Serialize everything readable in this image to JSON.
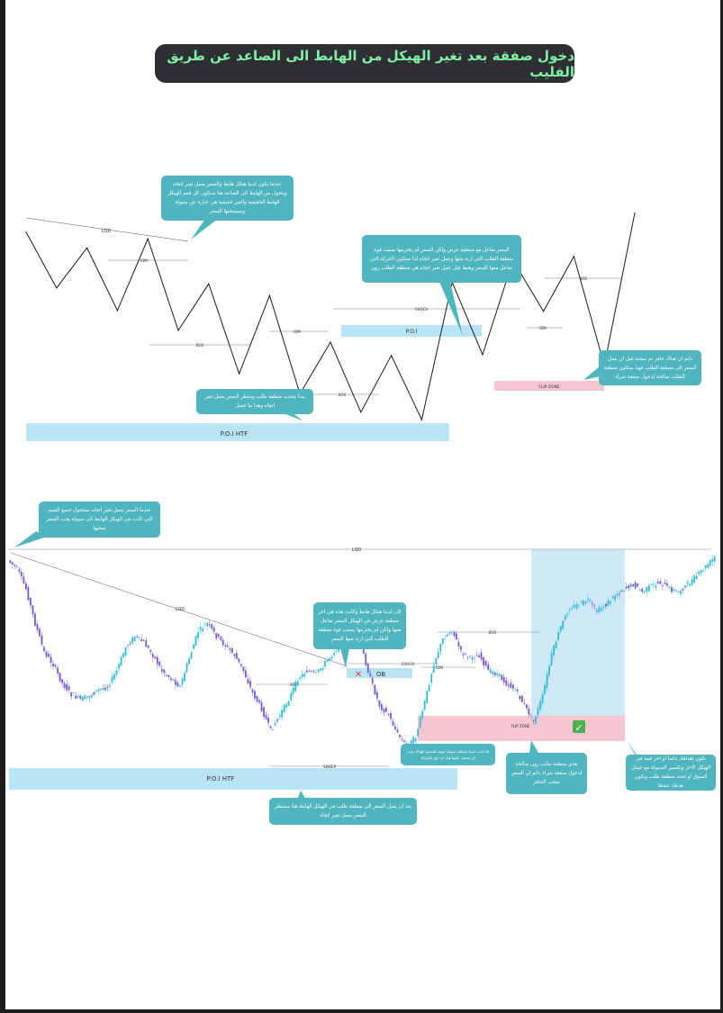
{
  "title": "دخول صفقة بعد تغير الهيكل من الهابط الى الصاعد عن طريق الفليب",
  "colors": {
    "title_bg": "#2d2f33",
    "title_text": "#7ff0a6",
    "callout_bg": "#4fb5bf",
    "poi_zone": "#b9e4f5",
    "flip_zone": "#f7c6d3",
    "bull_candle": "#2ec4d8",
    "bear_candle": "#7a5ad6",
    "target_zone": "#cfeaf6"
  },
  "top_diagram": {
    "labels": {
      "lqd": "LQD",
      "idm_1": "IDM",
      "bos_1": "BOS",
      "idm_2": "IDM",
      "bos_2": "BOS",
      "choch": "CHOCH",
      "poi": "P.O.I",
      "flip_zone": "FLIP ZONE",
      "idm_3": "IDM",
      "bos_3": "BOS",
      "poi_htf": "P.O.I  HTF"
    },
    "callouts": [
      {
        "id": "c1",
        "text": "عندما يكون لدينا هيكل هابط والسعر يعمل تغير اتجاه ويتحول من الهابط الى الصاعد هنا ستكون كل قمم الهيكل الهابط الحقيقية والغير حقيقية هي عبارة عن سيولة وسيسحبها السعر"
      },
      {
        "id": "c2",
        "text": "السعر تفاعل مع منطقة عرض ولكن السعر لم يحترمها بسبب قوة منطقة الطلب التي ارتد منها وعمل تغير اتجاه لذا ستكون الحركة التي تفاعل معها السعر وهبط قبل عمل تغير اتجاه هي منطقة الطلب زون"
      },
      {
        "id": "c3",
        "text": "دائم ان هناك حافز تم سحبه قبل ان يصل السعر الى منطقة الطلب فهنا ستكون منطقة الطلب صالحة لدخول صفقة شراء"
      },
      {
        "id": "c4",
        "text": "نبدأ بتحديد منطقة طلب وننتظر السعر يعمل تغير اتجاه وهذا ما حصل"
      }
    ]
  },
  "bottom_chart": {
    "labels": {
      "lqd_top": "LQD",
      "lqd_diag": "LQD",
      "idm_1": "IDM",
      "choch": "CHOCH",
      "ob": "OB",
      "sweep": "SWEEP",
      "idm_2": "IDM",
      "bos": "BOS",
      "flip_zone": "FLIP ZONE",
      "poi_htf": "P.O.I  HTF",
      "cross_mark": "✕",
      "check_mark": "✓"
    },
    "callouts": [
      {
        "id": "b1",
        "text": "عندما السعر يعمل تغير اتجاه ستتحول جميع القمم التي كانت في الهيكل الهابط الى سيولة يجب السعر سحبها"
      },
      {
        "id": "b2",
        "text": "كان لدينا هيكل هابط وكانت هذه هي اخر منطقة عرض في الهيكل السعر تفاعل معها ولكن لم يحترمها بسبب قوة منطقة الطلب التي ارتد منها السعر"
      },
      {
        "id": "b3",
        "text": "لذا كانت لدينا منطقة سيولة مهمة للصعود فهناك يجب ان يحصل عليها قبل ان نثق بالحركة"
      },
      {
        "id": "b4",
        "text": "هذي منطقة طلب زون صالحة لدخول صفقة شراء دائم ان السعر سحب الحافز"
      },
      {
        "id": "b5",
        "text": "تكون اهدافك دائما او اخر قمة في الهيكل الاخر وتكسير السيولة مع حيتان السوق او تحدد منطقة طلب ويكون هدفك عندها"
      },
      {
        "id": "b6",
        "text": "بعد ان يصل السعر الى منطقة طلب في الهيكل الهابط هنا سننتظر السعر يعمل تغير اتجاه"
      }
    ]
  },
  "chart_data": [
    {
      "type": "line",
      "x": [
        0,
        1,
        2,
        3,
        4,
        5,
        6,
        7,
        8,
        9,
        10,
        11,
        12,
        13,
        14,
        15,
        16,
        17,
        18,
        19,
        20
      ],
      "values": [
        100,
        33,
        81,
        6,
        92,
        -18,
        38,
        -70,
        24,
        -94,
        -32,
        -116,
        -48,
        -125,
        40,
        -47,
        66,
        5,
        71,
        -60,
        123
      ],
      "ylim": [
        -140,
        130
      ]
    },
    {
      "type": "line",
      "x": [
        0,
        10,
        20,
        30,
        40,
        50,
        60,
        70,
        80,
        90,
        100,
        110,
        120,
        130,
        140,
        150,
        160,
        170,
        180,
        190,
        200,
        210,
        220,
        230,
        240,
        250,
        260,
        270,
        280,
        290,
        300,
        310,
        320,
        330,
        340,
        350,
        360,
        370,
        380,
        390,
        400,
        410,
        420,
        430,
        440,
        450,
        460,
        470,
        480,
        490,
        500,
        510,
        520,
        530,
        540,
        550,
        560,
        570,
        580,
        590,
        600,
        610,
        620,
        630,
        640,
        650,
        660,
        670,
        680,
        690,
        700,
        710,
        720,
        730,
        740,
        750,
        760,
        770,
        780
      ],
      "values": [
        100,
        95,
        82,
        60,
        42,
        34,
        22,
        15,
        12,
        14,
        18,
        20,
        30,
        45,
        52,
        48,
        40,
        30,
        25,
        20,
        38,
        55,
        60,
        52,
        46,
        40,
        30,
        16,
        6,
        -8,
        2,
        12,
        25,
        30,
        28,
        35,
        42,
        50,
        54,
        45,
        25,
        8,
        2,
        -10,
        -18,
        -12,
        10,
        35,
        50,
        56,
        42,
        38,
        40,
        30,
        28,
        22,
        18,
        8,
        -2,
        14,
        40,
        58,
        70,
        72,
        75,
        68,
        72,
        78,
        82,
        85,
        80,
        84,
        86,
        82,
        80,
        85,
        90,
        96,
        102
      ],
      "ylim": [
        -30,
        110
      ]
    }
  ]
}
